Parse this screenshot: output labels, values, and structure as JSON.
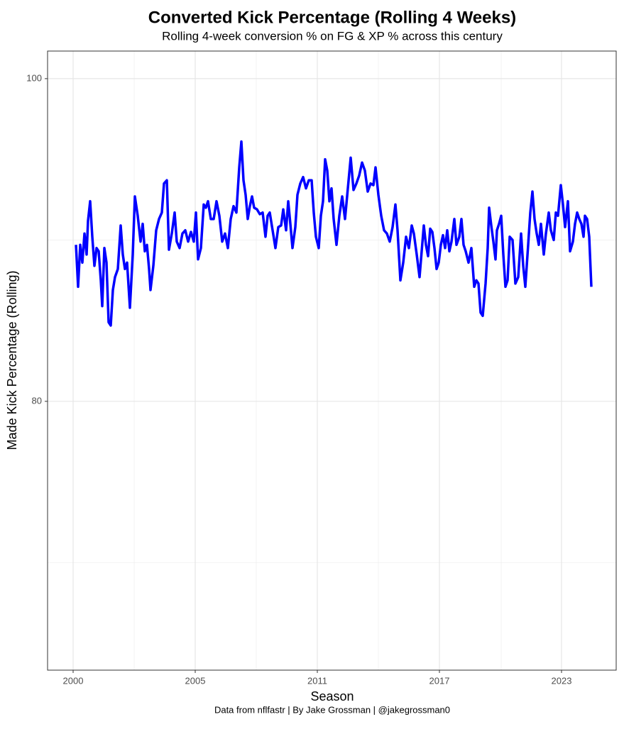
{
  "chart_data": {
    "type": "line",
    "title": "Converted Kick Percentage (Rolling 4 Weeks)",
    "subtitle": "Rolling 4-week conversion % on FG & XP % across this century",
    "x_label": "Season",
    "y_label": "Made Kick Percentage (Rolling)",
    "caption": "Data from nflfastr | By Jake Grossman | @jakegrossman0",
    "xlim": [
      -36,
      765
    ],
    "ylim": [
      63.34,
      101.71
    ],
    "xticks": [
      {
        "value": 0,
        "label": "2000"
      },
      {
        "value": 172,
        "label": "2005"
      },
      {
        "value": 344,
        "label": "2011"
      },
      {
        "value": 516,
        "label": "2017"
      },
      {
        "value": 688,
        "label": "2023"
      }
    ],
    "x_minor_ticks": [
      86,
      258,
      430,
      603
    ],
    "yticks": [
      80,
      100
    ],
    "y_minor_ticks": [
      70,
      90
    ],
    "grid": true,
    "series": [
      {
        "name": "Made Kick Percentage (Rolling)",
        "color": "#0000ff",
        "x": [
          4,
          7,
          10,
          13,
          16,
          19,
          21,
          24,
          27,
          30,
          33,
          36,
          39,
          41,
          44,
          47,
          50,
          53,
          56,
          59,
          63,
          67,
          70,
          73,
          76,
          80,
          84,
          87,
          91,
          95,
          98,
          101,
          104,
          107,
          109,
          113,
          117,
          121,
          125,
          128,
          132,
          135,
          139,
          143,
          146,
          150,
          154,
          158,
          162,
          166,
          170,
          173,
          176,
          180,
          184,
          187,
          190,
          194,
          198,
          202,
          206,
          210,
          214,
          218,
          222,
          226,
          230,
          234,
          237,
          240,
          243,
          246,
          249,
          252,
          255,
          259,
          263,
          267,
          271,
          274,
          277,
          281,
          285,
          289,
          293,
          296,
          300,
          303,
          306,
          309,
          313,
          316,
          320,
          324,
          328,
          332,
          336,
          339,
          342,
          346,
          349,
          352,
          355,
          358,
          361,
          364,
          367,
          371,
          375,
          379,
          383,
          387,
          391,
          395,
          399,
          403,
          407,
          411,
          415,
          419,
          423,
          426,
          430,
          434,
          438,
          442,
          446,
          450,
          454,
          457,
          461,
          465,
          469,
          473,
          477,
          480,
          484,
          488,
          491,
          494,
          497,
          500,
          503,
          506,
          509,
          512,
          515,
          518,
          521,
          524,
          527,
          530,
          533,
          537,
          540,
          544,
          547,
          550,
          553,
          557,
          561,
          565,
          568,
          571,
          574,
          577,
          581,
          584,
          586,
          589,
          592,
          595,
          597,
          600,
          603,
          606,
          609,
          612,
          615,
          619,
          623,
          627,
          631,
          634,
          637,
          641,
          644,
          647,
          650,
          653,
          656,
          659,
          663,
          666,
          670,
          673,
          677,
          680,
          683,
          687,
          690,
          693,
          697,
          700,
          704,
          707,
          710,
          713,
          716,
          719,
          721,
          724,
          727,
          730
        ],
        "values": [
          89.7,
          87.1,
          89.7,
          88.6,
          90.4,
          89.1,
          91.2,
          92.4,
          90.2,
          88.4,
          89.5,
          89.3,
          87.5,
          85.9,
          89.5,
          88.6,
          84.9,
          84.7,
          86.9,
          87.7,
          88.2,
          90.9,
          89.1,
          88.2,
          88.6,
          85.8,
          89.1,
          92.7,
          91.5,
          89.9,
          91.0,
          89.3,
          89.7,
          88.2,
          86.9,
          88.4,
          90.6,
          91.3,
          91.7,
          93.5,
          93.7,
          89.4,
          90.4,
          91.7,
          89.9,
          89.5,
          90.4,
          90.6,
          89.9,
          90.5,
          89.9,
          91.7,
          88.8,
          89.5,
          92.2,
          92.0,
          92.4,
          91.3,
          91.3,
          92.4,
          91.5,
          89.9,
          90.4,
          89.5,
          91.3,
          92.1,
          91.7,
          94.5,
          96.1,
          93.7,
          92.8,
          91.3,
          92.1,
          92.7,
          92.0,
          91.9,
          91.6,
          91.7,
          90.2,
          91.5,
          91.7,
          90.6,
          89.5,
          90.8,
          90.9,
          91.9,
          90.6,
          92.4,
          91.0,
          89.5,
          90.8,
          92.8,
          93.5,
          93.9,
          93.2,
          93.7,
          93.7,
          91.7,
          90.2,
          89.5,
          91.5,
          92.4,
          95.0,
          94.3,
          92.4,
          93.2,
          91.3,
          89.7,
          91.5,
          92.7,
          91.3,
          93.2,
          95.1,
          93.1,
          93.5,
          94.0,
          94.8,
          94.3,
          93.0,
          93.5,
          93.4,
          94.5,
          92.8,
          91.5,
          90.6,
          90.4,
          89.9,
          90.8,
          92.2,
          90.6,
          87.5,
          88.6,
          90.2,
          89.5,
          90.9,
          90.4,
          89.1,
          87.7,
          89.3,
          90.9,
          89.7,
          89.0,
          90.7,
          90.5,
          89.5,
          88.2,
          88.6,
          89.7,
          90.3,
          89.5,
          90.6,
          89.3,
          89.9,
          91.3,
          89.7,
          90.2,
          91.3,
          89.7,
          89.3,
          88.6,
          89.5,
          87.1,
          87.5,
          87.3,
          85.5,
          85.3,
          87.3,
          89.5,
          92.0,
          90.9,
          89.9,
          88.8,
          90.6,
          91.0,
          91.5,
          89.1,
          87.1,
          87.5,
          90.2,
          90.0,
          87.3,
          87.7,
          90.4,
          88.4,
          87.1,
          89.7,
          91.7,
          93.0,
          91.3,
          90.4,
          89.7,
          91.0,
          89.1,
          90.4,
          91.7,
          90.6,
          90.0,
          91.7,
          91.5,
          93.4,
          92.2,
          90.8,
          92.4,
          89.3,
          89.9,
          91.0,
          91.7,
          91.3,
          91.0,
          90.2,
          91.5,
          91.3,
          90.2,
          87.1
        ]
      }
    ]
  }
}
